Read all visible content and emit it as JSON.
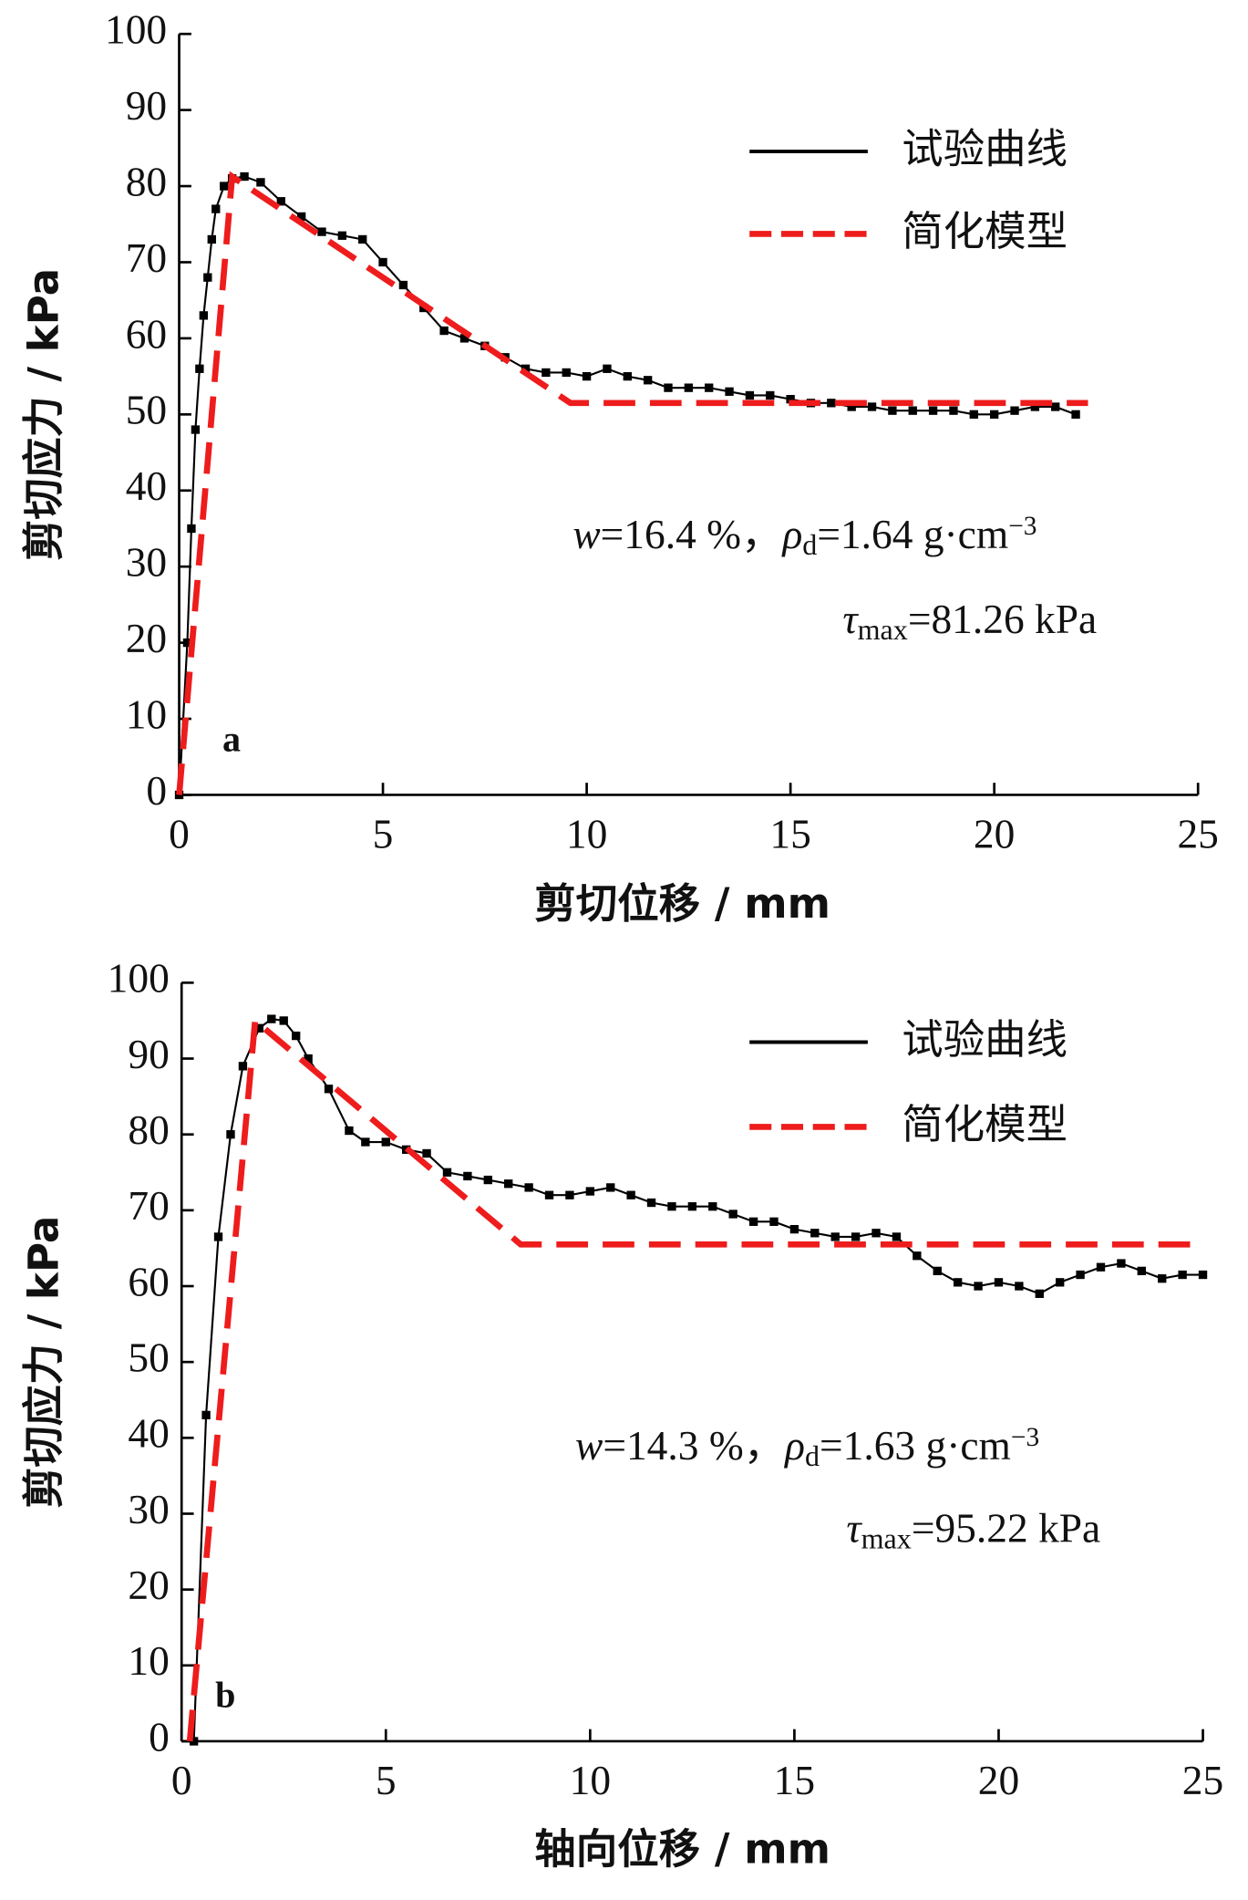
{
  "chart_data": [
    {
      "type": "line",
      "panel_label": "a",
      "x_label": "剪切位移 / mm",
      "y_label": "剪切应力 / kPa",
      "xlim": [
        0,
        25
      ],
      "xticks": [
        0,
        5,
        10,
        15,
        20,
        25
      ],
      "ylim": [
        0,
        100
      ],
      "yticks": [
        0,
        10,
        20,
        30,
        40,
        50,
        60,
        70,
        80,
        90,
        100
      ],
      "legend": "top-right",
      "series": [
        {
          "name": "试验曲线",
          "color": "#000000",
          "style": "solid",
          "marker": "square",
          "x": [
            0,
            0.2,
            0.3,
            0.4,
            0.5,
            0.6,
            0.7,
            0.8,
            0.9,
            1.1,
            1.3,
            1.6,
            2,
            2.5,
            3,
            3.5,
            4,
            4.5,
            5,
            5.5,
            6,
            6.5,
            7,
            7.5,
            8,
            8.5,
            9,
            9.5,
            10,
            10.5,
            11,
            11.5,
            12,
            12.5,
            13,
            13.5,
            14,
            14.5,
            15,
            15.5,
            16,
            16.5,
            17,
            17.5,
            18,
            18.5,
            19,
            19.5,
            20,
            20.5,
            21,
            21.5,
            22
          ],
          "values": [
            0,
            20,
            35,
            48,
            56,
            63,
            68,
            73,
            77,
            80,
            81,
            81.26,
            80.5,
            78,
            76,
            74,
            73.5,
            73,
            70,
            67,
            64,
            61,
            60,
            59,
            57.5,
            56,
            55.5,
            55.5,
            55,
            56,
            55,
            54.5,
            53.5,
            53.5,
            53.5,
            53,
            52.5,
            52.5,
            52,
            51.5,
            51.5,
            51,
            51,
            50.5,
            50.5,
            50.5,
            50.5,
            50,
            50,
            50.5,
            51,
            51,
            50
          ]
        },
        {
          "name": "简化模型",
          "color": "#ee1c1c",
          "style": "dashed",
          "x": [
            0,
            1.3,
            9.6,
            22.3
          ],
          "values": [
            0,
            81.26,
            51.5,
            51.5
          ]
        }
      ],
      "annotations": [
        [
          {
            "text": "w",
            "italic": true
          },
          {
            "text": "=16.4 %，"
          },
          {
            "text": "ρ",
            "italic": true
          },
          {
            "text": "d",
            "sub": true
          },
          {
            "text": "=1.64 g·cm"
          },
          {
            "text": "−3",
            "sup": true
          }
        ],
        [
          {
            "text": "τ",
            "italic": true
          },
          {
            "text": "max",
            "sub": true
          },
          {
            "text": "=81.26 kPa"
          }
        ]
      ]
    },
    {
      "type": "line",
      "panel_label": "b",
      "x_label": "轴向位移 / mm",
      "y_label": "剪切应力 / kPa",
      "xlim": [
        0,
        25
      ],
      "xticks": [
        0,
        5,
        10,
        15,
        20,
        25
      ],
      "ylim": [
        0,
        100
      ],
      "yticks": [
        0,
        10,
        20,
        30,
        40,
        50,
        60,
        70,
        80,
        90,
        100
      ],
      "legend": "top-right",
      "series": [
        {
          "name": "试验曲线",
          "color": "#000000",
          "style": "solid",
          "marker": "square",
          "x": [
            0.3,
            0.6,
            0.9,
            1.2,
            1.5,
            1.9,
            2.2,
            2.5,
            2.8,
            3.1,
            3.6,
            4.1,
            4.5,
            5,
            5.5,
            6,
            6.5,
            7,
            7.5,
            8,
            8.5,
            9,
            9.5,
            10,
            10.5,
            11,
            11.5,
            12,
            12.5,
            13,
            13.5,
            14,
            14.5,
            15,
            15.5,
            16,
            16.5,
            17,
            17.5,
            18,
            18.5,
            19,
            19.5,
            20,
            20.5,
            21,
            21.5,
            22,
            22.5,
            23,
            23.5,
            24,
            24.5,
            25
          ],
          "values": [
            0,
            43,
            66.5,
            80,
            89,
            94,
            95.22,
            95,
            93,
            90,
            86,
            80.5,
            79,
            79,
            78,
            77.5,
            75,
            74.5,
            74,
            73.5,
            73,
            72,
            72,
            72.5,
            73,
            72,
            71,
            70.5,
            70.5,
            70.5,
            69.5,
            68.5,
            68.5,
            67.5,
            67,
            66.5,
            66.5,
            67,
            66.5,
            64,
            62,
            60.5,
            60,
            60.5,
            60,
            59,
            60.5,
            61.5,
            62.5,
            63,
            62,
            61,
            61.5,
            61.5
          ]
        },
        {
          "name": "简化模型",
          "color": "#ee1c1c",
          "style": "dashed",
          "x": [
            0.2,
            1.8,
            8.3,
            25
          ],
          "values": [
            0,
            95,
            65.5,
            65.5
          ]
        }
      ],
      "annotations": [
        [
          {
            "text": "w",
            "italic": true
          },
          {
            "text": "=14.3 %，"
          },
          {
            "text": "ρ",
            "italic": true
          },
          {
            "text": "d",
            "sub": true
          },
          {
            "text": "=1.63 g·cm"
          },
          {
            "text": "−3",
            "sup": true
          }
        ],
        [
          {
            "text": "τ",
            "italic": true
          },
          {
            "text": "max",
            "sub": true
          },
          {
            "text": "=95.22 kPa"
          }
        ]
      ]
    }
  ]
}
